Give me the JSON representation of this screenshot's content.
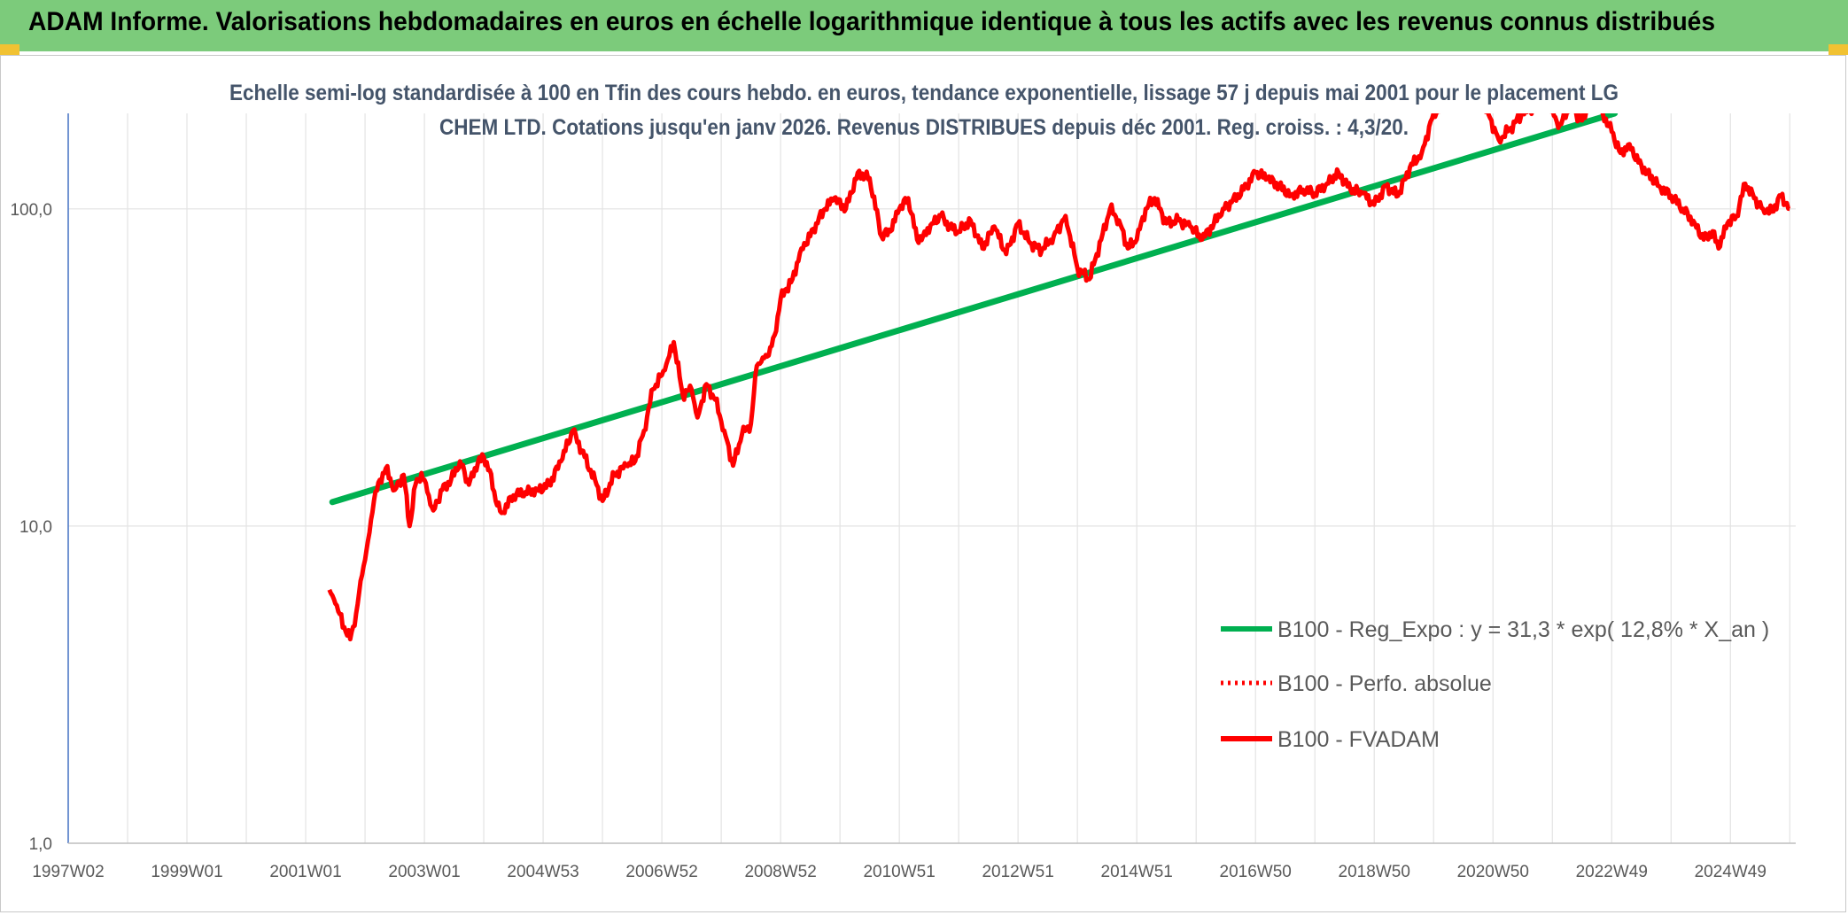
{
  "banner": {
    "title": "ADAM Informe. Valorisations hebdomadaires en euros en échelle logarithmique identique à tous les actifs avec les revenus connus distribués"
  },
  "colors": {
    "banner_bg": "#7ccb7b",
    "regression": "#00b050",
    "fvadam": "#ff0000",
    "perfo": "#ff0000",
    "grid": "#d9d9d9"
  },
  "chart_data": {
    "type": "line",
    "title": "Echelle semi-log standardisée à 100 en Tfin des cours hebdo. en euros, tendance exponentielle, lissage 57 j depuis mai 2001 pour le placement LG CHEM LTD. Cotations jusqu'en janv 2026. Revenus DISTRIBUES depuis déc 2001. Reg. croiss. : 4,3/20.",
    "y_scale": "log",
    "ylim": [
      1,
      200
    ],
    "xlim": [
      1997.0,
      2026.1
    ],
    "y_ticks": [
      "1,0",
      "10,0",
      "100,0"
    ],
    "y_tick_values": [
      1,
      10,
      100
    ],
    "x_ticks": [
      "1997W02",
      "1999W01",
      "2001W01",
      "2003W01",
      "2004W53",
      "2006W52",
      "2008W52",
      "2010W51",
      "2012W51",
      "2014W51",
      "2016W50",
      "2018W50",
      "2020W50",
      "2022W49",
      "2024W49"
    ],
    "x_tick_years": [
      1997.0,
      1999.0,
      2001.0,
      2003.0,
      2005.0,
      2007.0,
      2009.0,
      2011.0,
      2013.0,
      2015.0,
      2017.0,
      2019.0,
      2021.0,
      2023.0,
      2025.0
    ],
    "grid": true,
    "legend_position": "bottom-right",
    "series": [
      {
        "name": "B100 - Reg_Expo : y = 31,3 * exp( 12,8% *  X_an )",
        "style": "solid-green",
        "x": [
          2001.45,
          2023.05
        ],
        "y": [
          11.9,
          200
        ]
      },
      {
        "name": "B100 - Perfo. absolue",
        "style": "dotted-red",
        "x": [],
        "y": []
      },
      {
        "name": "B100 - FVADAM",
        "style": "solid-red",
        "x": [
          2001.4,
          2001.5,
          2001.65,
          2001.75,
          2001.85,
          2001.95,
          2002.05,
          2002.15,
          2002.25,
          2002.35,
          2002.5,
          2002.65,
          2002.75,
          2002.85,
          2002.95,
          2003.05,
          2003.15,
          2003.3,
          2003.45,
          2003.6,
          2003.75,
          2003.9,
          2004.0,
          2004.1,
          2004.2,
          2004.3,
          2004.5,
          2004.7,
          2004.9,
          2005.1,
          2005.3,
          2005.5,
          2005.7,
          2005.9,
          2006.0,
          2006.2,
          2006.4,
          2006.55,
          2006.7,
          2006.85,
          2007.05,
          2007.2,
          2007.35,
          2007.5,
          2007.6,
          2007.75,
          2007.9,
          2008.05,
          2008.2,
          2008.35,
          2008.5,
          2008.6,
          2008.7,
          2008.8,
          2008.9,
          2009.0,
          2009.1,
          2009.2,
          2009.35,
          2009.5,
          2009.6,
          2009.75,
          2009.9,
          2010.1,
          2010.3,
          2010.5,
          2010.7,
          2010.85,
          2011.0,
          2011.15,
          2011.3,
          2011.4,
          2011.55,
          2011.7,
          2011.85,
          2012.0,
          2012.2,
          2012.4,
          2012.6,
          2012.8,
          2013.0,
          2013.2,
          2013.4,
          2013.6,
          2013.8,
          2014.0,
          2014.2,
          2014.4,
          2014.55,
          2014.7,
          2014.85,
          2015.0,
          2015.15,
          2015.3,
          2015.5,
          2015.7,
          2015.9,
          2016.1,
          2016.3,
          2016.45,
          2016.6,
          2016.8,
          2017.0,
          2017.2,
          2017.4,
          2017.6,
          2017.8,
          2018.0,
          2018.2,
          2018.4,
          2018.6,
          2018.8,
          2019.0,
          2019.2,
          2019.4,
          2019.6,
          2019.8,
          2020.0,
          2020.15,
          2020.3,
          2020.45,
          2020.6,
          2020.7,
          2021.1,
          2021.3,
          2021.5,
          2021.7,
          2021.9,
          2022.1,
          2022.3,
          2022.5,
          2022.7,
          2022.85,
          2023.0,
          2023.15,
          2023.3,
          2023.45,
          2023.6,
          2023.8,
          2024.0,
          2024.2,
          2024.4,
          2024.55,
          2024.7,
          2024.8,
          2024.95,
          2025.1,
          2025.25,
          2025.4,
          2025.55,
          2025.7,
          2025.85,
          2026.0
        ],
        "y": [
          6.3,
          5.7,
          4.8,
          4.4,
          5.3,
          7.0,
          9.0,
          12.0,
          14.0,
          15.2,
          13.0,
          14.5,
          10.0,
          13.5,
          14.7,
          12.8,
          11.2,
          13.0,
          14.0,
          16.0,
          13.5,
          15.8,
          16.5,
          15.0,
          12.0,
          11.0,
          12.5,
          12.8,
          13.0,
          13.5,
          16.0,
          20.0,
          16.5,
          13.5,
          12.0,
          14.5,
          15.5,
          16.0,
          20.0,
          27.0,
          31.0,
          38.0,
          26.0,
          27.0,
          22.0,
          28.0,
          25.0,
          20.0,
          15.5,
          19.5,
          21.0,
          32.0,
          34.0,
          34.5,
          40.0,
          52.0,
          56.0,
          60.0,
          75.0,
          82.0,
          90.0,
          100.0,
          108.0,
          100.0,
          130.0,
          125.0,
          82.0,
          85.0,
          100.0,
          108.0,
          80.0,
          82.0,
          90.0,
          95.0,
          88.0,
          85.0,
          92.0,
          75.0,
          88.0,
          72.0,
          90.0,
          78.0,
          74.0,
          82.0,
          95.0,
          65.0,
          60.0,
          80.0,
          100.0,
          92.0,
          75.0,
          80.0,
          100.0,
          108.0,
          90.0,
          92.0,
          88.0,
          80.0,
          90.0,
          100.0,
          105.0,
          115.0,
          130.0,
          125.0,
          118.0,
          110.0,
          115.0,
          112.0,
          120.0,
          130.0,
          115.0,
          112.0,
          103.0,
          118.0,
          110.0,
          135.0,
          150.0,
          200.0,
          210.0,
          220.0,
          230.0,
          240.0,
          250.0,
          165.0,
          180.0,
          200.0,
          210.0,
          230.0,
          180.0,
          210.0,
          190.0,
          230.0,
          200.0,
          175.0,
          150.0,
          160.0,
          140.0,
          130.0,
          118.0,
          110.0,
          100.0,
          90.0,
          80.0,
          85.0,
          75.0,
          90.0,
          95.0,
          120.0,
          108.0,
          100.0,
          98.0,
          110.0,
          100.0
        ]
      }
    ]
  }
}
